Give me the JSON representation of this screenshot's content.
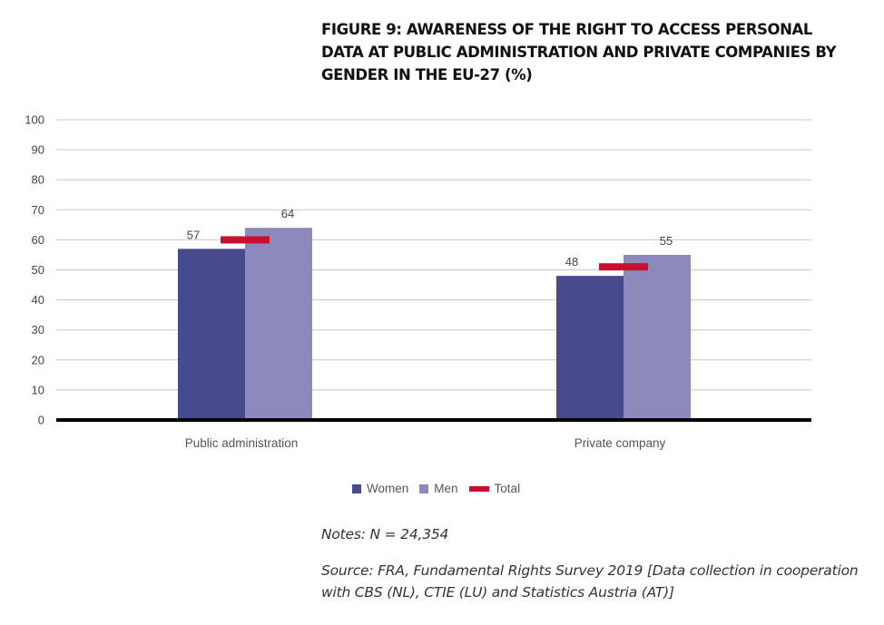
{
  "figure": {
    "title": "FIGURE 9: AWARENESS OF THE RIGHT TO ACCESS PERSONAL DATA AT PUBLIC ADMINISTRATION AND PRIVATE COMPANIES BY GENDER IN THE EU-27 (%)",
    "notes": "Notes: N = 24,354",
    "source": "Source: FRA, Fundamental Rights Survey 2019 [Data collection in cooperation with CBS (NL), CTIE (LU) and Statistics Austria (AT)]"
  },
  "legend": {
    "women": "Women",
    "men": "Men",
    "total": "Total"
  },
  "colors": {
    "women": "#484a8e",
    "men": "#8d89bd",
    "total": "#c8102e",
    "grid": "#c8c8c8",
    "baseline": "#000000"
  },
  "chart_data": {
    "type": "bar",
    "title": "FIGURE 9: AWARENESS OF THE RIGHT TO ACCESS PERSONAL DATA AT PUBLIC ADMINISTRATION AND PRIVATE COMPANIES BY GENDER IN THE EU-27 (%)",
    "categories": [
      "Public administration",
      "Private company"
    ],
    "series": [
      {
        "name": "Women",
        "values": [
          57,
          48
        ],
        "labels": [
          "57",
          "48"
        ]
      },
      {
        "name": "Men",
        "values": [
          64,
          55
        ],
        "labels": [
          "64",
          "55"
        ]
      }
    ],
    "total": {
      "name": "Total",
      "marker": "line",
      "values": [
        60,
        51
      ]
    },
    "ylim": [
      0,
      100
    ],
    "yticks": [
      0,
      10,
      20,
      30,
      40,
      50,
      60,
      70,
      80,
      90,
      100
    ],
    "ytick_labels": [
      "0",
      "10",
      "20",
      "30",
      "40",
      "50",
      "60",
      "70",
      "80",
      "90",
      "100"
    ],
    "xlabel": "",
    "ylabel": "",
    "grid": true,
    "legend_position": "bottom-center"
  }
}
